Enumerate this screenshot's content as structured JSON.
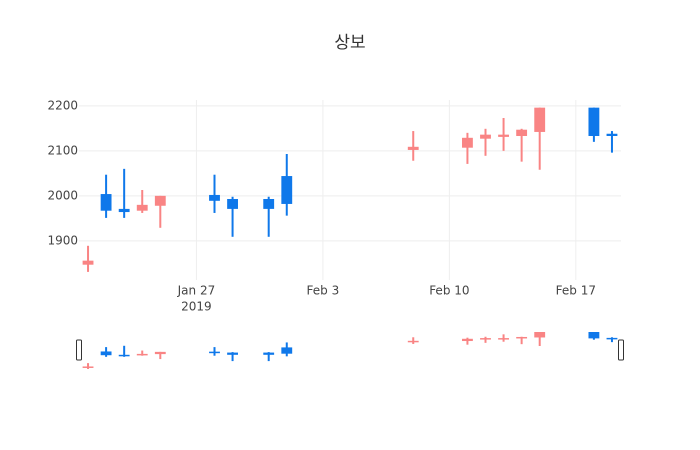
{
  "chart_data": {
    "type": "candlestick",
    "title": "상보",
    "x": [
      "2019-01-21",
      "2019-01-22",
      "2019-01-23",
      "2019-01-24",
      "2019-01-25",
      "2019-01-28",
      "2019-01-29",
      "2019-01-31",
      "2019-02-01",
      "2019-02-08",
      "2019-02-11",
      "2019-02-12",
      "2019-02-13",
      "2019-02-14",
      "2019-02-15",
      "2019-02-18",
      "2019-02-19"
    ],
    "open": [
      1847,
      2004,
      1971,
      1967,
      1978,
      2002,
      1993,
      1993,
      2044,
      2102,
      2107,
      2127,
      2131,
      2133,
      2142,
      2196,
      2138
    ],
    "high": [
      1889,
      2047,
      2060,
      2013,
      2000,
      2047,
      1998,
      1998,
      2093,
      2144,
      2140,
      2149,
      2173,
      2149,
      2196,
      2196,
      2144
    ],
    "low": [
      1831,
      1951,
      1951,
      1962,
      1929,
      1962,
      1909,
      1909,
      1956,
      2078,
      2071,
      2089,
      2100,
      2076,
      2058,
      2120,
      2096
    ],
    "close": [
      1856,
      1967,
      1964,
      1980,
      2000,
      1989,
      1971,
      1971,
      1982,
      2109,
      2129,
      2136,
      2136,
      2147,
      2196,
      2133,
      2133
    ],
    "increasing_color": "#f98484",
    "decreasing_color": "#0f78ea",
    "xlim": [
      "2019-01-20T12:00",
      "2019-02-19T12:00"
    ],
    "xticks": [
      {
        "value": "2019-01-27",
        "label": "Jan 27"
      },
      {
        "value": "2019-02-03",
        "label": "Feb 3"
      },
      {
        "value": "2019-02-10",
        "label": "Feb 10"
      },
      {
        "value": "2019-02-17",
        "label": "Feb 17"
      }
    ],
    "x_year_label": "2019",
    "ylim": [
      1813,
      2213
    ],
    "yticks": [
      1900,
      2000,
      2100,
      2200
    ],
    "grid": true,
    "rangeslider": true
  }
}
